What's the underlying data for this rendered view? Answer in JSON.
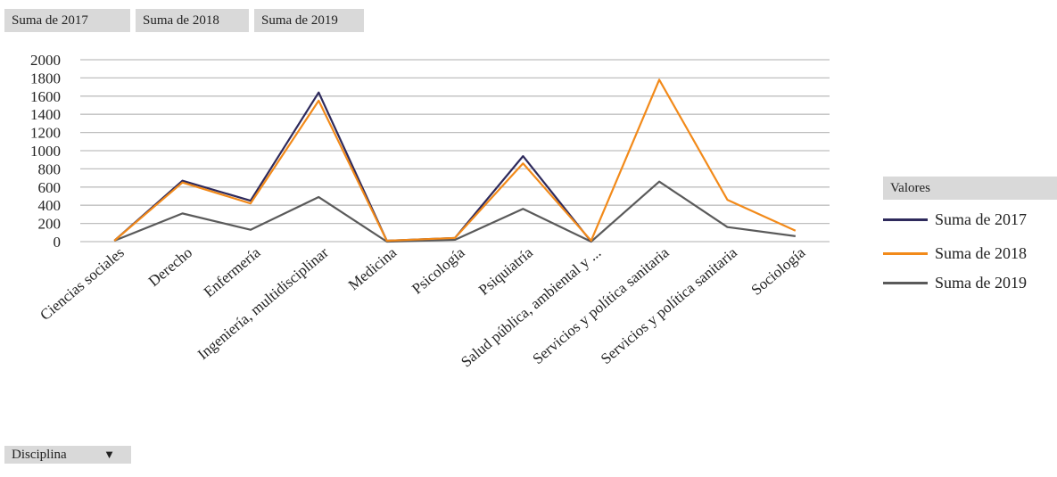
{
  "field_buttons": [
    "Suma de 2017",
    "Suma de 2018",
    "Suma de 2019"
  ],
  "legend": {
    "title": "Valores",
    "items": [
      {
        "label": "Suma de 2017",
        "color": "#2e2a5c"
      },
      {
        "label": "Suma de 2018",
        "color": "#f28a1a"
      },
      {
        "label": "Suma de 2019",
        "color": "#5a5a5a"
      }
    ]
  },
  "filter": {
    "label": "Disciplina",
    "icon": "dropdown-arrow-icon"
  },
  "chart_data": {
    "type": "line",
    "title": "",
    "xlabel": "",
    "ylabel": "",
    "ylim": [
      0,
      2000
    ],
    "yticks": [
      0,
      200,
      400,
      600,
      800,
      1000,
      1200,
      1400,
      1600,
      1800,
      2000
    ],
    "grid": true,
    "legend_position": "right",
    "categories": [
      "Ciencias sociales",
      "Derecho",
      "Enfermería",
      "Ingeniería, multidisciplinar",
      "Medicina",
      "Psicología",
      "Psiquiatría",
      "Salud pública, ambiental y ...",
      "Servicios y política sanitaria",
      "Servicios y política sanitaria",
      "Sociología"
    ],
    "series": [
      {
        "name": "Suma de 2017",
        "color": "#2e2a5c",
        "values": [
          10,
          670,
          450,
          1640,
          10,
          40,
          940,
          0,
          null,
          null,
          null
        ]
      },
      {
        "name": "Suma de 2018",
        "color": "#f28a1a",
        "values": [
          10,
          650,
          420,
          1550,
          10,
          40,
          860,
          10,
          1780,
          460,
          120
        ]
      },
      {
        "name": "Suma de 2019",
        "color": "#5a5a5a",
        "values": [
          10,
          310,
          130,
          490,
          0,
          20,
          360,
          0,
          660,
          160,
          60
        ]
      }
    ]
  }
}
